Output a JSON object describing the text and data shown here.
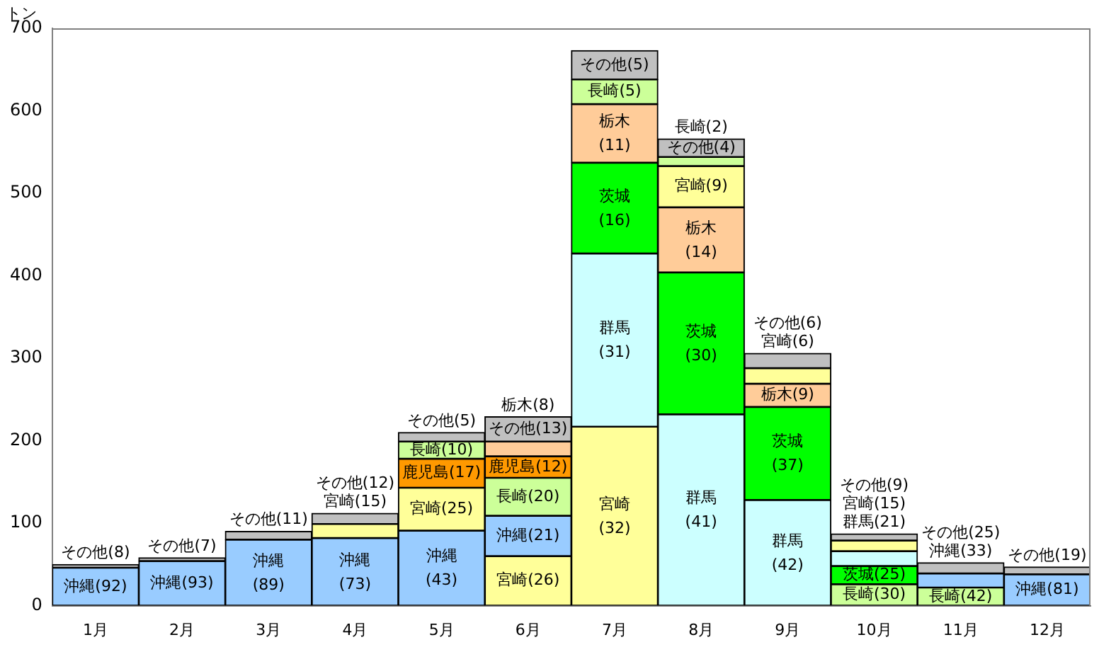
{
  "chart_data": {
    "type": "bar",
    "ylabel": "トン",
    "categories": [
      "1月",
      "2月",
      "3月",
      "4月",
      "5月",
      "6月",
      "7月",
      "8月",
      "9月",
      "10月",
      "11月",
      "12月"
    ],
    "ylim": [
      0,
      700
    ],
    "yticks": [
      0,
      100,
      200,
      300,
      400,
      500,
      600,
      700
    ],
    "grid": false,
    "legend": false,
    "series": [
      {
        "color": "#99ccff",
        "values": [
          46,
          54,
          80,
          82,
          91,
          49,
          null,
          null,
          null,
          null,
          17,
          38
        ],
        "base": [
          0,
          0,
          0,
          0,
          0,
          60,
          null,
          null,
          null,
          null,
          22,
          0
        ],
        "value_labels": [
          "沖縄(92)",
          "沖縄(93)",
          "沖縄(89)",
          "沖縄(73)",
          "沖縄(43)",
          "沖縄(21)",
          null,
          null,
          null,
          null,
          "沖縄(33)",
          "沖縄(81)"
        ]
      },
      {
        "color": "#ffff99",
        "values": [
          null,
          null,
          null,
          17,
          52,
          60,
          217,
          50,
          19,
          13,
          null,
          null
        ],
        "base": [
          null,
          null,
          null,
          82,
          91,
          0,
          0,
          483,
          269,
          66,
          null,
          null
        ],
        "value_labels": [
          null,
          null,
          null,
          "宮崎(15)",
          "宮崎(25)",
          "宮崎(26)",
          "宮崎(32)",
          "宮崎(9)",
          "宮崎(6)",
          "宮崎(15)",
          null,
          null
        ]
      },
      {
        "color": "#ccff99",
        "values": [
          null,
          null,
          null,
          null,
          21,
          46,
          30,
          11,
          null,
          26,
          22,
          null
        ],
        "base": [
          null,
          null,
          null,
          null,
          178,
          109,
          608,
          533,
          null,
          0,
          0,
          null
        ],
        "value_labels": [
          null,
          null,
          null,
          null,
          "長崎(10)",
          "長崎(20)",
          "長崎(5)",
          "長崎(2)",
          null,
          "長崎(30)",
          "長崎(42)",
          null
        ]
      },
      {
        "color": "#ff9900",
        "values": [
          null,
          null,
          null,
          null,
          35,
          26,
          null,
          null,
          null,
          null,
          null,
          null
        ],
        "base": [
          null,
          null,
          null,
          null,
          143,
          155,
          null,
          null,
          null,
          null,
          null,
          null
        ],
        "value_labels": [
          null,
          null,
          null,
          null,
          "鹿児島(17)",
          "鹿児島(12)",
          null,
          null,
          null,
          null,
          null,
          null
        ]
      },
      {
        "color": "#ffcc99",
        "values": [
          null,
          null,
          null,
          null,
          null,
          18,
          71,
          79,
          28,
          null,
          null,
          null
        ],
        "base": [
          null,
          null,
          null,
          null,
          null,
          181,
          537,
          404,
          241,
          null,
          null,
          null
        ],
        "value_labels": [
          null,
          null,
          null,
          null,
          null,
          "栃木(8)",
          "栃木(11)",
          "栃木(14)",
          "栃木(9)",
          null,
          null,
          null
        ]
      },
      {
        "color": "#00ff00",
        "values": [
          null,
          null,
          null,
          null,
          null,
          null,
          110,
          172,
          113,
          22,
          null,
          null
        ],
        "base": [
          null,
          null,
          null,
          null,
          null,
          null,
          427,
          232,
          128,
          26,
          null,
          null
        ],
        "value_labels": [
          null,
          null,
          null,
          null,
          null,
          null,
          "茨城(16)",
          "茨城(30)",
          "茨城(37)",
          "茨城(25)",
          null,
          null
        ]
      },
      {
        "color": "#ccffff",
        "values": [
          null,
          null,
          null,
          null,
          null,
          null,
          210,
          232,
          128,
          18,
          null,
          null
        ],
        "base": [
          null,
          null,
          null,
          null,
          null,
          null,
          217,
          0,
          0,
          48,
          null,
          null
        ],
        "value_labels": [
          null,
          null,
          null,
          null,
          null,
          null,
          "群馬(31)",
          "群馬(41)",
          "群馬(42)",
          "群馬(21)",
          null,
          null
        ]
      },
      {
        "color": "#c0c0c0",
        "values": [
          4,
          4,
          10,
          13,
          11,
          30,
          35,
          22,
          18,
          8,
          13,
          9
        ],
        "base": [
          46,
          54,
          80,
          99,
          199,
          199,
          638,
          544,
          288,
          79,
          39,
          38
        ],
        "value_labels": [
          "その他(8)",
          "その他(7)",
          "その他(11)",
          "その他(12)",
          "その他(5)",
          "その他(13)",
          "その他(5)",
          "その他(4)",
          "その他(6)",
          "その他(9)",
          "その他(25)",
          "その他(19)"
        ]
      }
    ]
  }
}
